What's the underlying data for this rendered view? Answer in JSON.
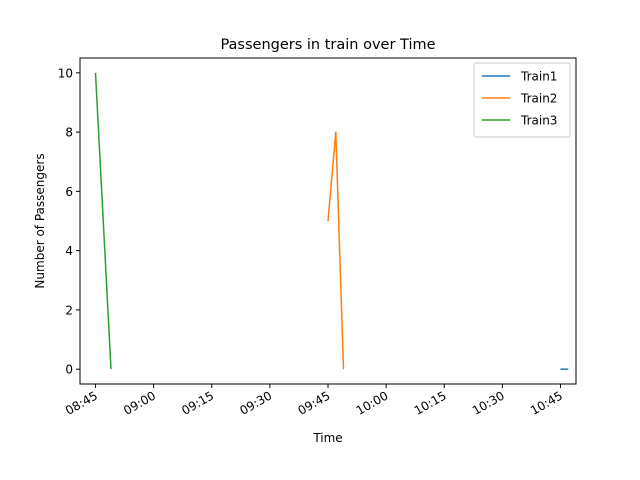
{
  "chart_data": {
    "type": "line",
    "title": "Passengers in train over Time",
    "xlabel": "Time",
    "ylabel": "Number of Passengers",
    "x_ticks": [
      "08:45",
      "09:00",
      "09:15",
      "09:30",
      "09:45",
      "10:00",
      "10:15",
      "10:30",
      "10:45"
    ],
    "xlim": [
      "08:41",
      "10:49"
    ],
    "y_ticks": [
      0,
      2,
      4,
      6,
      8,
      10
    ],
    "ylim": [
      -0.5,
      10.5
    ],
    "grid": false,
    "legend_position": "top-right",
    "series": [
      {
        "name": "Train1",
        "color": "#1f77b4",
        "points": [
          {
            "x": "10:45",
            "y": 0
          },
          {
            "x": "10:47",
            "y": 0
          }
        ]
      },
      {
        "name": "Train2",
        "color": "#ff7f0e",
        "points": [
          {
            "x": "09:45",
            "y": 5
          },
          {
            "x": "09:47",
            "y": 8
          },
          {
            "x": "09:49",
            "y": 0
          }
        ]
      },
      {
        "name": "Train3",
        "color": "#2ca02c",
        "points": [
          {
            "x": "08:45",
            "y": 10
          },
          {
            "x": "08:49",
            "y": 0
          }
        ]
      }
    ]
  }
}
